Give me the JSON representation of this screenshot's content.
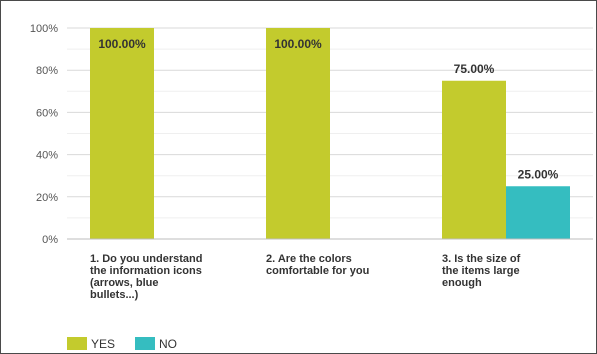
{
  "chart_data": {
    "type": "bar",
    "categories": [
      [
        "1. Do you understand",
        "the information icons",
        "(arrows, blue",
        "bullets...)"
      ],
      [
        "2. Are the colors",
        "comfortable for you"
      ],
      [
        "3. Is the size of",
        "the items large",
        "enough"
      ]
    ],
    "series": [
      {
        "name": "YES",
        "values": [
          100,
          100,
          75
        ],
        "labels": [
          "100.00%",
          "100.00%",
          "75.00%"
        ],
        "color": "#c3cb2d"
      },
      {
        "name": "NO",
        "values": [
          0,
          0,
          25
        ],
        "labels": [
          "",
          "",
          "25.00%"
        ],
        "color": "#35bdc0"
      }
    ],
    "yticks": [
      "0%",
      "20%",
      "40%",
      "60%",
      "80%",
      "100%"
    ],
    "ylim": [
      0,
      100
    ],
    "grid": true,
    "legend_position": "bottom-left"
  }
}
